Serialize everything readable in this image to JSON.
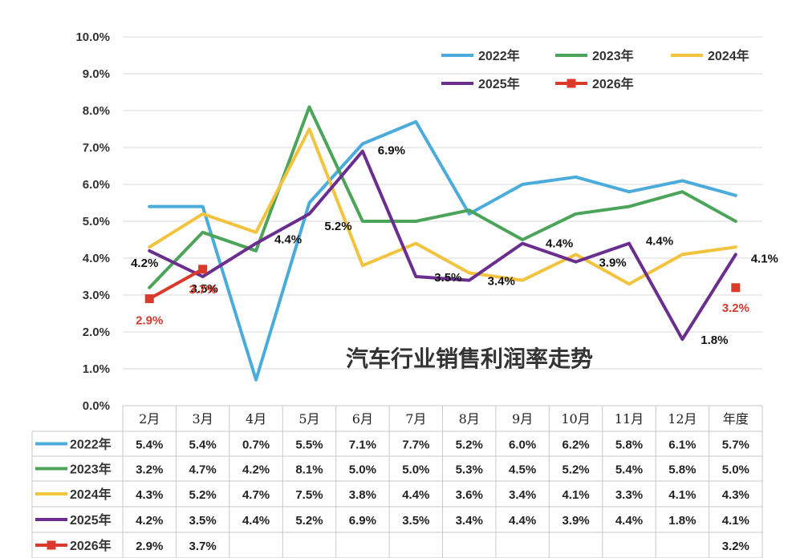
{
  "chart_data": {
    "type": "line",
    "title": "汽车行业销售利润率走势",
    "categories": [
      "2月",
      "3月",
      "4月",
      "5月",
      "6月",
      "7月",
      "8月",
      "9月",
      "10月",
      "11月",
      "12月",
      "年度"
    ],
    "ylim": [
      0,
      10
    ],
    "ytick_labels": [
      "0.0%",
      "1.0%",
      "2.0%",
      "3.0%",
      "4.0%",
      "5.0%",
      "6.0%",
      "7.0%",
      "8.0%",
      "9.0%",
      "10.0%"
    ],
    "grid": true,
    "legend_position": "top-right",
    "series": [
      {
        "name": "2022年",
        "color": "#4BACDB",
        "marker": "none",
        "values": [
          5.4,
          5.4,
          0.7,
          5.5,
          7.1,
          7.7,
          5.2,
          6.0,
          6.2,
          5.8,
          6.1,
          5.7
        ],
        "table": [
          "5.4%",
          "5.4%",
          "0.7%",
          "5.5%",
          "7.1%",
          "7.7%",
          "5.2%",
          "6.0%",
          "6.2%",
          "5.8%",
          "6.1%",
          "5.7%"
        ]
      },
      {
        "name": "2023年",
        "color": "#4BA45A",
        "marker": "none",
        "values": [
          3.2,
          4.7,
          4.2,
          8.1,
          5.0,
          5.0,
          5.3,
          4.5,
          5.2,
          5.4,
          5.8,
          5.0
        ],
        "table": [
          "3.2%",
          "4.7%",
          "4.2%",
          "8.1%",
          "5.0%",
          "5.0%",
          "5.3%",
          "4.5%",
          "5.2%",
          "5.4%",
          "5.8%",
          "5.0%"
        ]
      },
      {
        "name": "2024年",
        "color": "#F2C33E",
        "marker": "none",
        "values": [
          4.3,
          5.2,
          4.7,
          7.5,
          3.8,
          4.4,
          3.6,
          3.4,
          4.1,
          3.3,
          4.1,
          4.3
        ],
        "table": [
          "4.3%",
          "5.2%",
          "4.7%",
          "7.5%",
          "3.8%",
          "4.4%",
          "3.6%",
          "3.4%",
          "4.1%",
          "3.3%",
          "4.1%",
          "4.3%"
        ]
      },
      {
        "name": "2025年",
        "color": "#6A2E8F",
        "marker": "none",
        "values": [
          4.2,
          3.5,
          4.4,
          5.2,
          6.9,
          3.5,
          3.4,
          4.4,
          3.9,
          4.4,
          1.8,
          4.1
        ],
        "table": [
          "4.2%",
          "3.5%",
          "4.4%",
          "5.2%",
          "6.9%",
          "3.5%",
          "3.4%",
          "4.4%",
          "3.9%",
          "4.4%",
          "1.8%",
          "4.1%"
        ]
      },
      {
        "name": "2026年",
        "color": "#D93A2B",
        "marker": "square",
        "values": [
          2.9,
          3.7,
          null,
          null,
          null,
          null,
          null,
          null,
          null,
          null,
          null,
          3.2
        ],
        "table": [
          "2.9%",
          "3.7%",
          "",
          "",
          "",
          "",
          "",
          "",
          "",
          "",
          "",
          "3.2%"
        ]
      }
    ],
    "data_labels": [
      {
        "series": 3,
        "index": 0,
        "text": "4.2%",
        "color": "#111"
      },
      {
        "series": 3,
        "index": 1,
        "text": "3.5%",
        "color": "#111"
      },
      {
        "series": 3,
        "index": 2,
        "text": "4.4%",
        "color": "#111"
      },
      {
        "series": 3,
        "index": 3,
        "text": "5.2%",
        "color": "#111"
      },
      {
        "series": 3,
        "index": 4,
        "text": "6.9%",
        "color": "#111"
      },
      {
        "series": 3,
        "index": 5,
        "text": "3.5%",
        "color": "#111"
      },
      {
        "series": 3,
        "index": 6,
        "text": "3.4%",
        "color": "#111"
      },
      {
        "series": 3,
        "index": 7,
        "text": "4.4%",
        "color": "#111"
      },
      {
        "series": 3,
        "index": 8,
        "text": "3.9%",
        "color": "#111"
      },
      {
        "series": 3,
        "index": 9,
        "text": "4.4%",
        "color": "#111"
      },
      {
        "series": 3,
        "index": 10,
        "text": "1.8%",
        "color": "#111"
      },
      {
        "series": 3,
        "index": 11,
        "text": "4.1%",
        "color": "#111"
      },
      {
        "series": 4,
        "index": 0,
        "text": "2.9%",
        "color": "#D93A2B"
      },
      {
        "series": 4,
        "index": 1,
        "text": "3.7%",
        "color": "#D93A2B"
      },
      {
        "series": 4,
        "index": 11,
        "text": "3.2%",
        "color": "#D93A2B"
      }
    ]
  }
}
